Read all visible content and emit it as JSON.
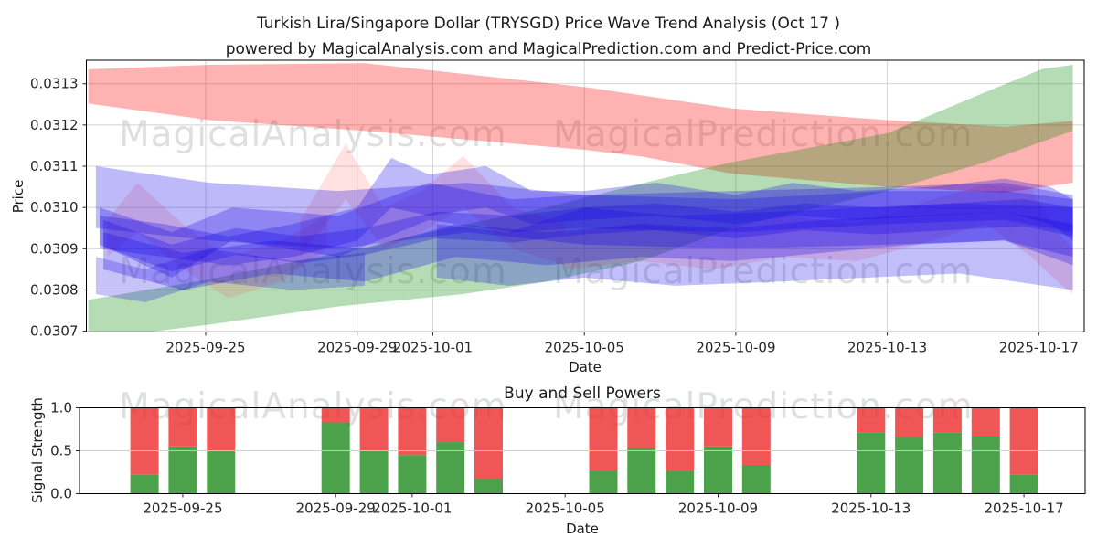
{
  "watermarks": {
    "analysis": "MagicalAnalysis.com",
    "prediction": "MagicalPrediction.com"
  },
  "chart_data": [
    {
      "type": "area",
      "name": "price-wave-trend",
      "title": "Turkish Lira/Singapore Dollar (TRYSGD) Price Wave Trend Analysis (Oct 17 )",
      "subtitle": "powered by MagicalAnalysis.com and MagicalPrediction.com and Predict-Price.com",
      "xlabel": "Date",
      "ylabel": "Price",
      "ylim": [
        0.030698,
        0.031357
      ],
      "xlim_days": [
        -0.15,
        26.2
      ],
      "grid": true,
      "x_ticks": [
        {
          "day": 3,
          "label": "2025-09-25"
        },
        {
          "day": 7,
          "label": "2025-09-29"
        },
        {
          "day": 9,
          "label": "2025-10-01"
        },
        {
          "day": 13,
          "label": "2025-10-05"
        },
        {
          "day": 17,
          "label": "2025-10-09"
        },
        {
          "day": 21,
          "label": "2025-10-13"
        },
        {
          "day": 25,
          "label": "2025-10-17"
        }
      ],
      "y_ticks": [
        {
          "value": 0.0307,
          "label": "0.0307"
        },
        {
          "value": 0.0308,
          "label": "0.0308"
        },
        {
          "value": 0.0309,
          "label": "0.0309"
        },
        {
          "value": 0.031,
          "label": "0.0310"
        },
        {
          "value": 0.0311,
          "label": "0.0311"
        },
        {
          "value": 0.0312,
          "label": "0.0312"
        },
        {
          "value": 0.0313,
          "label": "0.0313"
        }
      ],
      "bands": [
        {
          "name": "sell-pressure-band-red",
          "color": "#ff0000",
          "opacity": 0.3,
          "points": [
            [
              -0.1,
              0.031335,
              0.031252
            ],
            [
              3.1,
              0.031346,
              0.031212
            ],
            [
              7.2,
              0.03135,
              0.031186
            ],
            [
              13.0,
              0.031292,
              0.03114
            ],
            [
              14.5,
              0.031272,
              0.031124
            ],
            [
              16.9,
              0.03124,
              0.031082
            ],
            [
              21.0,
              0.031212,
              0.03105
            ],
            [
              24.1,
              0.031196,
              0.031036
            ],
            [
              25.9,
              0.03121,
              0.03106
            ]
          ]
        },
        {
          "name": "buy-pressure-band-green",
          "color": "#0c8a0c",
          "opacity": 0.3,
          "points": [
            [
              -0.1,
              0.030776,
              0.03068
            ],
            [
              3.1,
              0.030826,
              0.030716
            ],
            [
              6.5,
              0.03089,
              0.03076
            ],
            [
              9.8,
              0.030958,
              0.03079
            ],
            [
              12.0,
              0.031,
              0.03082
            ],
            [
              14.5,
              0.031058,
              0.03087
            ],
            [
              16.9,
              0.03111,
              0.03095
            ],
            [
              21.0,
              0.03118,
              0.03104
            ],
            [
              23.6,
              0.03128,
              0.03111
            ],
            [
              25.1,
              0.031336,
              0.03116
            ],
            [
              25.9,
              0.031346,
              0.031186
            ]
          ]
        },
        {
          "name": "pink-overlay-left",
          "color": "#ff4444",
          "opacity": 0.16,
          "points": [
            [
              0.4,
              0.03097,
              0.03088
            ],
            [
              1.2,
              0.03106,
              0.03094
            ],
            [
              2.4,
              0.03096,
              0.03085
            ],
            [
              3.6,
              0.03088,
              0.03078
            ],
            [
              5.0,
              0.03092,
              0.03082
            ],
            [
              6.2,
              0.03098,
              0.0309
            ]
          ]
        },
        {
          "name": "pink-overlay-peaks",
          "color": "#ff4444",
          "opacity": 0.16,
          "points": [
            [
              5.5,
              0.03097,
              0.03088
            ],
            [
              6.7,
              0.031155,
              0.03102
            ],
            [
              7.7,
              0.031,
              0.0309
            ],
            [
              8.7,
              0.03104,
              0.03094
            ],
            [
              9.8,
              0.031125,
              0.031
            ],
            [
              11.1,
              0.031,
              0.0309
            ],
            [
              12.5,
              0.03096,
              0.03086
            ]
          ]
        },
        {
          "name": "pink-overlay-right",
          "color": "#ff4444",
          "opacity": 0.16,
          "points": [
            [
              12.5,
              0.03094,
              0.03085
            ],
            [
              14.5,
              0.03096,
              0.03087
            ],
            [
              16.4,
              0.03094,
              0.03085
            ],
            [
              18.3,
              0.03098,
              0.03088
            ],
            [
              20.2,
              0.03096,
              0.03087
            ],
            [
              22.2,
              0.03102,
              0.03092
            ],
            [
              23.6,
              0.031055,
              0.03096
            ],
            [
              24.8,
              0.031045,
              0.03088
            ],
            [
              25.5,
              0.03094,
              0.03082
            ],
            [
              25.9,
              0.0309,
              0.03079
            ]
          ]
        },
        {
          "name": "wave-band-1",
          "color": "#1405e6",
          "opacity": 0.28,
          "points": [
            [
              0.1,
              0.0311,
              0.03095
            ],
            [
              3.1,
              0.03106,
              0.03092
            ],
            [
              6.5,
              0.03104,
              0.0309
            ],
            [
              9.9,
              0.03106,
              0.03094
            ],
            [
              13.0,
              0.03103,
              0.03091
            ],
            [
              17.0,
              0.03104,
              0.0309
            ],
            [
              21.0,
              0.03105,
              0.03091
            ],
            [
              24.1,
              0.03106,
              0.03092
            ],
            [
              25.9,
              0.03103,
              0.03088
            ]
          ]
        },
        {
          "name": "wave-band-2",
          "color": "#1405e6",
          "opacity": 0.28,
          "points": [
            [
              0.2,
              0.031,
              0.03091
            ],
            [
              2.1,
              0.03094,
              0.03083
            ],
            [
              3.7,
              0.031,
              0.03092
            ],
            [
              6.5,
              0.03098,
              0.03088
            ],
            [
              8.9,
              0.03106,
              0.03097
            ],
            [
              11.1,
              0.03102,
              0.03094
            ],
            [
              13.0,
              0.03103,
              0.03095
            ],
            [
              17.0,
              0.03102,
              0.03094
            ],
            [
              21.0,
              0.03104,
              0.03096
            ],
            [
              24.1,
              0.03104,
              0.03097
            ],
            [
              25.9,
              0.03102,
              0.03094
            ]
          ]
        },
        {
          "name": "wave-band-3",
          "color": "#1405e6",
          "opacity": 0.28,
          "points": [
            [
              0.3,
              0.03094,
              0.03085
            ],
            [
              2.4,
              0.03089,
              0.0308
            ],
            [
              4.8,
              0.03092,
              0.03084
            ],
            [
              7.2,
              0.0309,
              0.03082
            ],
            [
              9.6,
              0.03096,
              0.03088
            ],
            [
              12.0,
              0.03094,
              0.03086
            ],
            [
              14.5,
              0.03096,
              0.03088
            ],
            [
              16.9,
              0.03095,
              0.03087
            ],
            [
              19.3,
              0.03097,
              0.03089
            ],
            [
              21.7,
              0.03098,
              0.03091
            ],
            [
              24.1,
              0.03099,
              0.03092
            ],
            [
              25.9,
              0.03096,
              0.03086
            ]
          ]
        },
        {
          "name": "wave-band-4",
          "color": "#1405e6",
          "opacity": 0.28,
          "points": [
            [
              0.2,
              0.03098,
              0.0309
            ],
            [
              1.9,
              0.03096,
              0.03088
            ],
            [
              3.6,
              0.03093,
              0.03086
            ],
            [
              5.3,
              0.03096,
              0.03088
            ],
            [
              7.0,
              0.031,
              0.03092
            ],
            [
              7.9,
              0.03112,
              0.031
            ],
            [
              8.9,
              0.03108,
              0.03098
            ],
            [
              10.4,
              0.0311,
              0.031
            ],
            [
              11.6,
              0.03104,
              0.03096
            ],
            [
              13.0,
              0.03104,
              0.03097
            ],
            [
              14.9,
              0.03106,
              0.03098
            ],
            [
              17.0,
              0.03103,
              0.03096
            ],
            [
              18.5,
              0.03106,
              0.03098
            ],
            [
              20.2,
              0.03104,
              0.03097
            ],
            [
              22.2,
              0.03105,
              0.03098
            ],
            [
              24.1,
              0.03107,
              0.03099
            ],
            [
              25.3,
              0.03105,
              0.03096
            ],
            [
              25.9,
              0.03102,
              0.03092
            ]
          ]
        },
        {
          "name": "wave-band-5",
          "color": "#1405e6",
          "opacity": 0.28,
          "points": [
            [
              0.3,
              0.03097,
              0.030905
            ],
            [
              2.1,
              0.03091,
              0.030845
            ],
            [
              3.8,
              0.03095,
              0.030885
            ],
            [
              5.5,
              0.03093,
              0.030865
            ],
            [
              7.2,
              0.03095,
              0.030885
            ],
            [
              9.1,
              0.03099,
              0.030925
            ],
            [
              11.1,
              0.03098,
              0.030915
            ],
            [
              13.0,
              0.031,
              0.030935
            ],
            [
              14.9,
              0.03101,
              0.030945
            ],
            [
              17.0,
              0.03099,
              0.030925
            ],
            [
              18.8,
              0.03101,
              0.030945
            ],
            [
              20.7,
              0.031,
              0.030935
            ],
            [
              22.6,
              0.03101,
              0.030945
            ],
            [
              24.6,
              0.03102,
              0.030955
            ],
            [
              25.9,
              0.031,
              0.03093
            ]
          ]
        },
        {
          "name": "wave-band-6",
          "color": "#1405e6",
          "opacity": 0.26,
          "points": [
            [
              9.1,
              0.03096,
              0.03083
            ],
            [
              11.0,
              0.03094,
              0.03081
            ],
            [
              13.0,
              0.031,
              0.03083
            ],
            [
              15.4,
              0.03098,
              0.03081
            ],
            [
              18.1,
              0.03099,
              0.03082
            ],
            [
              20.5,
              0.031,
              0.03083
            ],
            [
              22.9,
              0.03101,
              0.03084
            ],
            [
              25.9,
              0.031,
              0.0308
            ]
          ]
        },
        {
          "name": "wave-band-7",
          "color": "#1405e6",
          "opacity": 0.24,
          "points": [
            [
              0.1,
              0.03088,
              0.03079
            ],
            [
              1.4,
              0.03085,
              0.03077
            ],
            [
              3.1,
              0.0309,
              0.03082
            ],
            [
              5.3,
              0.03087,
              0.0308
            ],
            [
              7.2,
              0.03089,
              0.03081
            ]
          ]
        }
      ]
    },
    {
      "type": "bar",
      "name": "buy-sell-powers",
      "title": "Buy and Sell Powers",
      "xlabel": "Date",
      "ylabel": "Signal Strength",
      "stacked": true,
      "bar_total": 1.0,
      "ylim": [
        0,
        1
      ],
      "xlim_days": [
        0.3,
        26.6
      ],
      "x_ticks": [
        {
          "day": 3,
          "label": "2025-09-25"
        },
        {
          "day": 7,
          "label": "2025-09-29"
        },
        {
          "day": 9,
          "label": "2025-10-01"
        },
        {
          "day": 13,
          "label": "2025-10-05"
        },
        {
          "day": 17,
          "label": "2025-10-09"
        },
        {
          "day": 21,
          "label": "2025-10-13"
        },
        {
          "day": 25,
          "label": "2025-10-17"
        }
      ],
      "y_ticks": [
        {
          "value": 0.0,
          "label": "0.0"
        },
        {
          "value": 0.5,
          "label": "0.5"
        },
        {
          "value": 1.0,
          "label": "1.0"
        }
      ],
      "categories": [
        "2025-09-24",
        "2025-09-25",
        "2025-09-26",
        "2025-09-29",
        "2025-09-30",
        "2025-10-01",
        "2025-10-02",
        "2025-10-03",
        "2025-10-06",
        "2025-10-07",
        "2025-10-08",
        "2025-10-09",
        "2025-10-10",
        "2025-10-13",
        "2025-10-14",
        "2025-10-15",
        "2025-10-16",
        "2025-10-17"
      ],
      "day_index": [
        2,
        3,
        4,
        7,
        8,
        9,
        10,
        11,
        14,
        15,
        16,
        17,
        18,
        21,
        22,
        23,
        24,
        25
      ],
      "series": [
        {
          "name": "Buy",
          "color": "#1e8b1e",
          "opacity": 0.8,
          "values": [
            0.22,
            0.55,
            0.5,
            0.83,
            0.5,
            0.45,
            0.6,
            0.17,
            0.27,
            0.53,
            0.27,
            0.55,
            0.33,
            0.71,
            0.66,
            0.71,
            0.67,
            0.22
          ]
        },
        {
          "name": "Sell",
          "color": "#ee2c2c",
          "opacity": 0.8,
          "values": [
            0.78,
            0.45,
            0.5,
            0.17,
            0.5,
            0.55,
            0.4,
            0.83,
            0.73,
            0.47,
            0.73,
            0.45,
            0.67,
            0.29,
            0.34,
            0.29,
            0.33,
            0.78
          ]
        }
      ]
    }
  ]
}
